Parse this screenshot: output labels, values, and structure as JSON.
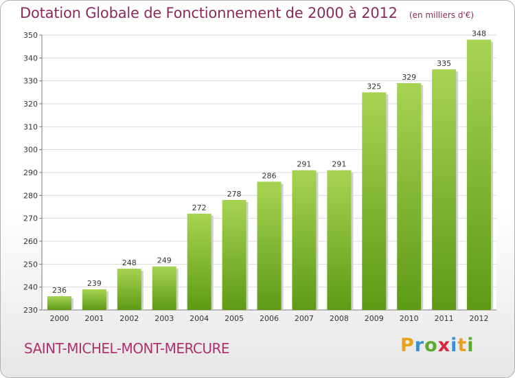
{
  "header": {
    "title": "Dotation Globale de Fonctionnement de 2000 à 2012",
    "unit": "(en milliers d'€)"
  },
  "footer": {
    "commune": "SAINT-MICHEL-MONT-MERCURE",
    "logo_letters": [
      "P",
      "r",
      "o",
      "x",
      "i",
      "t",
      "i"
    ],
    "logo_colors": [
      "#e8a21b",
      "#3a8fd0",
      "#5ba82e",
      "#d6283a",
      "#3a8fd0",
      "#e8a21b",
      "#5ba82e"
    ]
  },
  "colors": {
    "bar_top": "#a6d452",
    "bar_bottom": "#5e9a16",
    "grid": "#d9d9d9",
    "title": "#8a2a5c"
  },
  "chart_data": {
    "type": "bar",
    "categories": [
      "2000",
      "2001",
      "2002",
      "2003",
      "2004",
      "2005",
      "2006",
      "2007",
      "2008",
      "2009",
      "2010",
      "2011",
      "2012"
    ],
    "values": [
      236,
      239,
      248,
      249,
      272,
      278,
      286,
      291,
      291,
      325,
      329,
      335,
      348
    ],
    "title": "Dotation Globale de Fonctionnement de 2000 à 2012",
    "ylabel": "",
    "xlabel": "",
    "ylim": [
      230,
      350
    ],
    "yticks": [
      230,
      240,
      250,
      260,
      270,
      280,
      290,
      300,
      310,
      320,
      330,
      340,
      350
    ],
    "grid": true,
    "data_labels": true
  }
}
